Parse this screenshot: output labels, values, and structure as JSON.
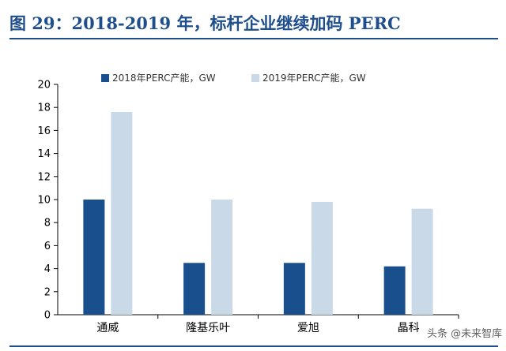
{
  "title": "图 29：2018-2019 年，标杆企业继续加码 PERC",
  "watermark": "头条 @未来智库",
  "colors": {
    "title": "#1f4e8c",
    "series_2018": "#1a4f8e",
    "series_2019": "#c9d9e8"
  },
  "chart_data": {
    "type": "bar",
    "categories": [
      "通威",
      "隆基乐叶",
      "爱旭",
      "晶科"
    ],
    "series": [
      {
        "name": "2018年PERC产能，GW",
        "values": [
          10,
          4.5,
          4.5,
          4.2
        ]
      },
      {
        "name": "2019年PERC产能，GW",
        "values": [
          17.6,
          10,
          9.8,
          9.2
        ]
      }
    ],
    "ylim": [
      0,
      20
    ],
    "yticks": [
      0,
      2,
      4,
      6,
      8,
      10,
      12,
      14,
      16,
      18,
      20
    ],
    "grid": false,
    "legend_position": "top"
  }
}
